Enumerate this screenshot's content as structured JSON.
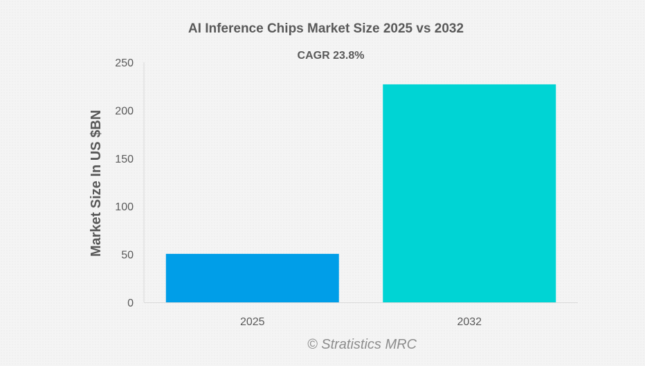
{
  "chart_data": {
    "type": "bar",
    "title": "AI Inference Chips Market Size 2025 vs 2032",
    "subtitle": "CAGR 23.8%",
    "xlabel": "",
    "ylabel": "Market Size In US $BN",
    "categories": [
      "2025",
      "2032"
    ],
    "values": [
      50.5,
      227
    ],
    "colors": [
      "#009ee8",
      "#00d4d4"
    ],
    "ylim": [
      0,
      250
    ],
    "yticks": [
      0,
      50,
      100,
      150,
      200,
      250
    ],
    "grid": false,
    "legend": "none"
  },
  "watermark": "© Stratistics MRC"
}
